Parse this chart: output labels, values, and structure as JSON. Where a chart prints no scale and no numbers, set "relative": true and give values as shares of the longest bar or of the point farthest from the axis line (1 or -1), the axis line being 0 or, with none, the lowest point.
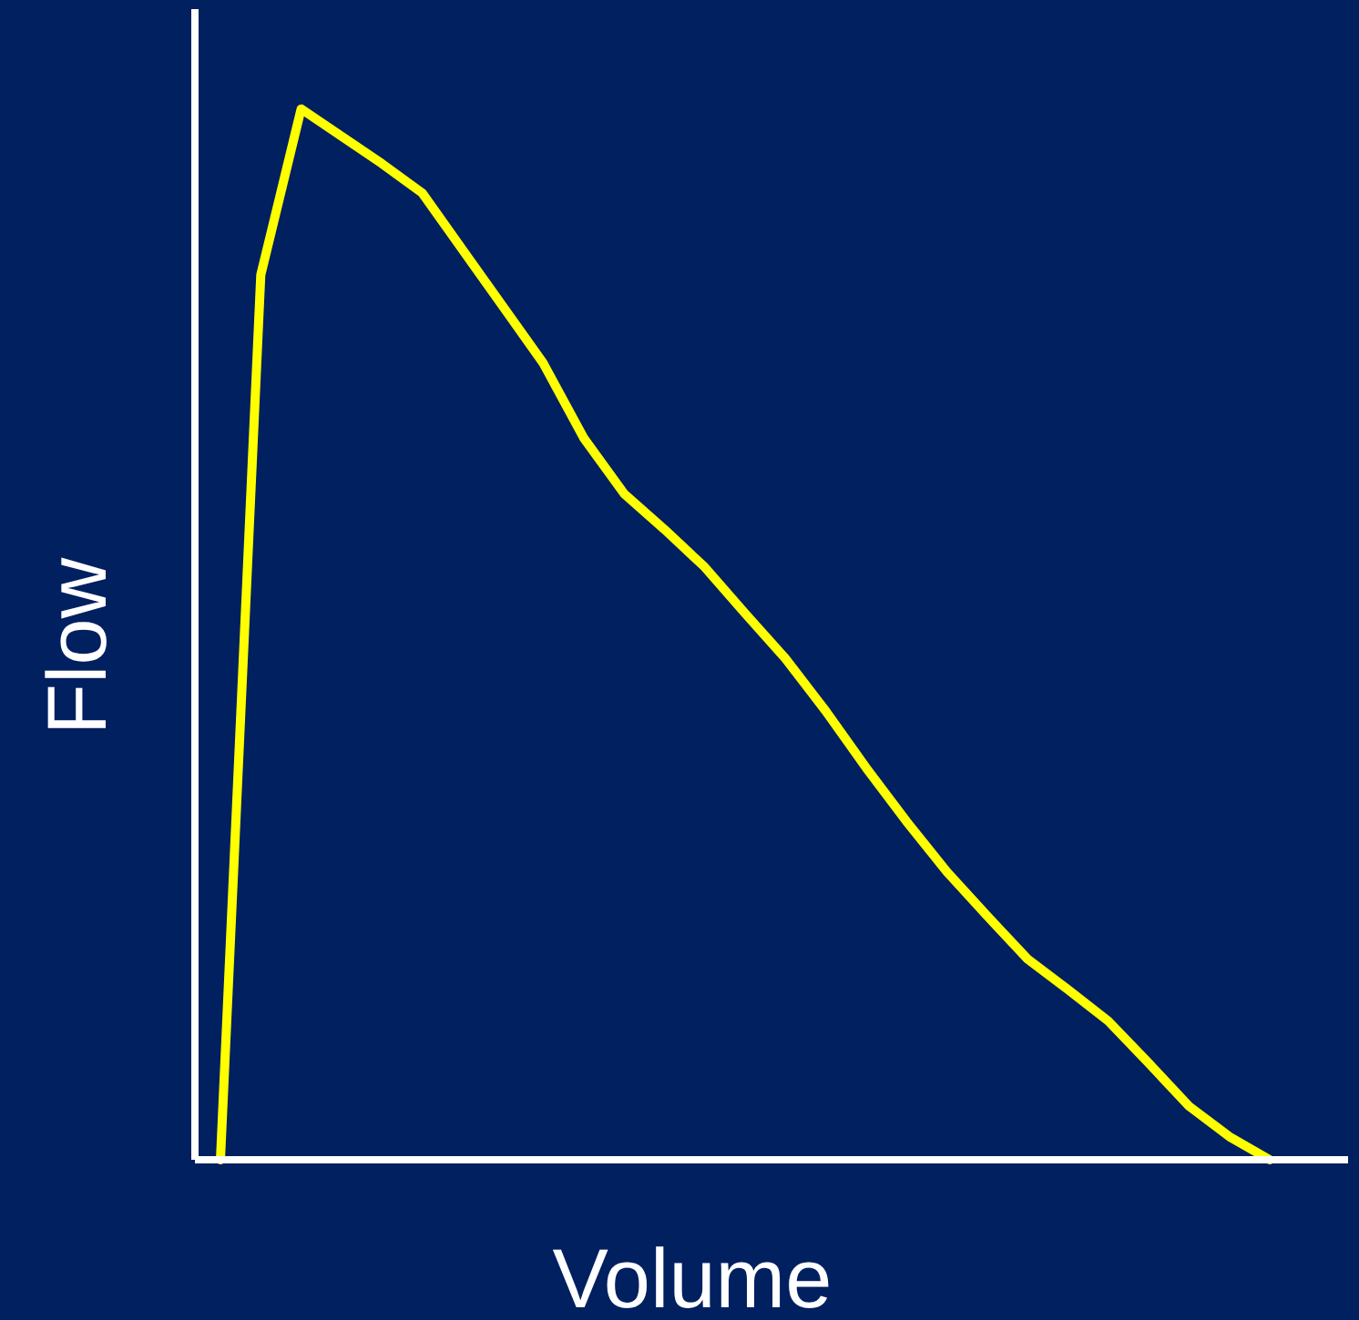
{
  "chart_data": {
    "type": "line",
    "xlabel": "Volume",
    "ylabel": "Flow",
    "relative": true,
    "categories": [
      null,
      null,
      null,
      null,
      null,
      null,
      null,
      null,
      null,
      null,
      null,
      null,
      null,
      null,
      null,
      null,
      null,
      null,
      null,
      null,
      null,
      null,
      null,
      null,
      null,
      null,
      null
    ],
    "series": [
      {
        "color": "#ffff00",
        "values": [
          0,
          0.842,
          1,
          0.974,
          0.948,
          0.92,
          0.866,
          0.812,
          0.758,
          0.687,
          0.634,
          0.6,
          0.564,
          0.52,
          0.477,
          0.427,
          0.373,
          0.322,
          0.274,
          0.232,
          0.191,
          0.162,
          0.132,
          0.092,
          0.051,
          0.022,
          0
        ]
      }
    ],
    "marker": "none",
    "line_style": "solid"
  }
}
